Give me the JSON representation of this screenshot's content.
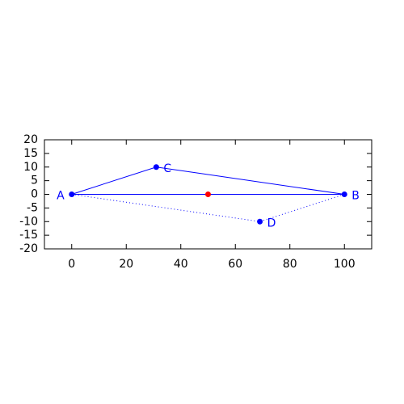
{
  "chart_data": {
    "type": "line",
    "xlim": [
      -10,
      110
    ],
    "xticks": [
      0,
      20,
      40,
      60,
      80,
      100
    ],
    "ylim": [
      -20,
      20
    ],
    "yticks": [
      -20,
      -15,
      -10,
      -5,
      0,
      5,
      10,
      15,
      20
    ],
    "lines": [
      {
        "style": "solid",
        "color": "#0000ff",
        "x": [
          0,
          31,
          100
        ],
        "y": [
          0,
          10,
          0
        ]
      },
      {
        "style": "solid",
        "color": "#0000ff",
        "x": [
          0,
          100
        ],
        "y": [
          0,
          0
        ]
      },
      {
        "style": "dotted",
        "color": "#0000ff",
        "x": [
          0,
          69,
          100
        ],
        "y": [
          0,
          -10,
          0
        ]
      }
    ],
    "points": {
      "x": [
        0,
        100,
        31,
        69,
        50
      ],
      "y": [
        0,
        0,
        10,
        -10,
        0
      ],
      "labels": [
        "A",
        "B",
        "C",
        "D",
        null
      ],
      "colors": [
        "#0000ff",
        "#0000ff",
        "#0000ff",
        "#0000ff",
        "#ff0000"
      ]
    }
  }
}
